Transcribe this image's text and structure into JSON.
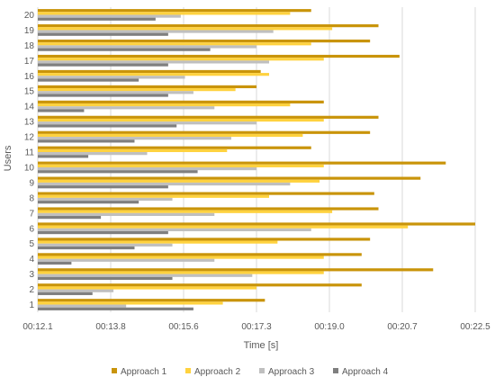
{
  "chart_data": {
    "type": "bar",
    "orientation": "horizontal",
    "xlabel": "Time [s]",
    "ylabel": "Users",
    "x_ticks": [
      "00:12.1",
      "00:13.8",
      "00:15.6",
      "00:17.3",
      "00:19.0",
      "00:20.7",
      "00:22.5"
    ],
    "x_range_seconds": [
      12.1,
      22.5
    ],
    "grid": "vertical",
    "legend_position": "bottom",
    "categories": [
      "1",
      "2",
      "3",
      "4",
      "5",
      "6",
      "7",
      "8",
      "9",
      "10",
      "11",
      "12",
      "13",
      "14",
      "15",
      "16",
      "17",
      "18",
      "19",
      "20"
    ],
    "series": [
      {
        "name": "Approach 1",
        "color": "#C9940A",
        "values": [
          17.5,
          19.8,
          21.5,
          19.8,
          20.0,
          22.5,
          20.2,
          20.1,
          21.2,
          21.8,
          18.6,
          20.0,
          20.2,
          18.9,
          17.3,
          17.4,
          20.7,
          20.0,
          20.2,
          18.6
        ]
      },
      {
        "name": "Approach 2",
        "color": "#FFD23F",
        "values": [
          16.5,
          17.3,
          18.9,
          18.9,
          17.8,
          20.9,
          19.1,
          17.6,
          18.8,
          18.9,
          16.6,
          18.4,
          18.9,
          18.1,
          16.8,
          17.6,
          18.9,
          18.6,
          19.1,
          18.1
        ]
      },
      {
        "name": "Approach 3",
        "color": "#BFBFBF",
        "values": [
          14.2,
          13.9,
          17.2,
          16.3,
          15.3,
          18.6,
          16.3,
          15.3,
          18.1,
          17.3,
          14.7,
          16.7,
          17.3,
          16.3,
          15.8,
          15.6,
          17.6,
          17.3,
          17.7,
          15.5
        ]
      },
      {
        "name": "Approach 4",
        "color": "#7F7F7F",
        "values": [
          15.8,
          13.4,
          15.3,
          12.9,
          14.4,
          15.2,
          13.6,
          14.5,
          15.2,
          15.9,
          13.3,
          14.4,
          15.4,
          13.2,
          15.2,
          14.5,
          15.2,
          16.2,
          15.2,
          14.9
        ]
      }
    ]
  }
}
